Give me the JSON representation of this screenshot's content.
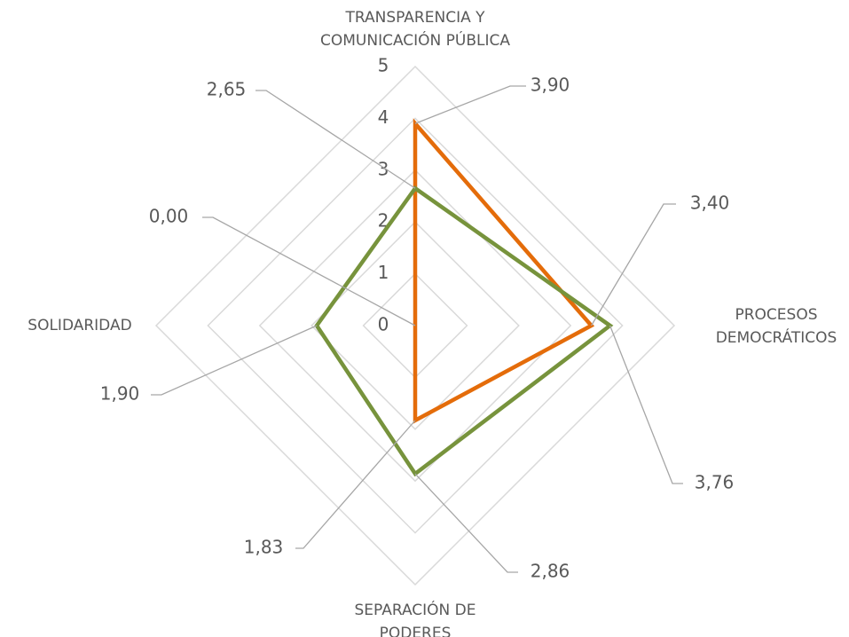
{
  "chart_data": {
    "type": "radar",
    "categories": [
      [
        "TRANSPARENCIA Y",
        "COMUNICACIÓN PÚBLICA"
      ],
      [
        "PROCESOS",
        "DEMOCRÁTICOS"
      ],
      [
        "SEPARACIÓN DE",
        "PODERES"
      ],
      [
        "SOLIDARIDAD"
      ]
    ],
    "series": [
      {
        "color": "#e46c0a",
        "values": [
          3.9,
          3.4,
          1.83,
          0.0
        ],
        "value_labels": [
          "3,90",
          "3,40",
          "1,83",
          "0,00"
        ]
      },
      {
        "color": "#77933c",
        "values": [
          2.65,
          3.76,
          2.86,
          1.9
        ],
        "value_labels": [
          "2,65",
          "3,76",
          "2,86",
          "1,90"
        ]
      }
    ],
    "rlim": [
      0,
      5
    ],
    "rticks": [
      0,
      1,
      2,
      3,
      4,
      5
    ],
    "grid": true
  }
}
